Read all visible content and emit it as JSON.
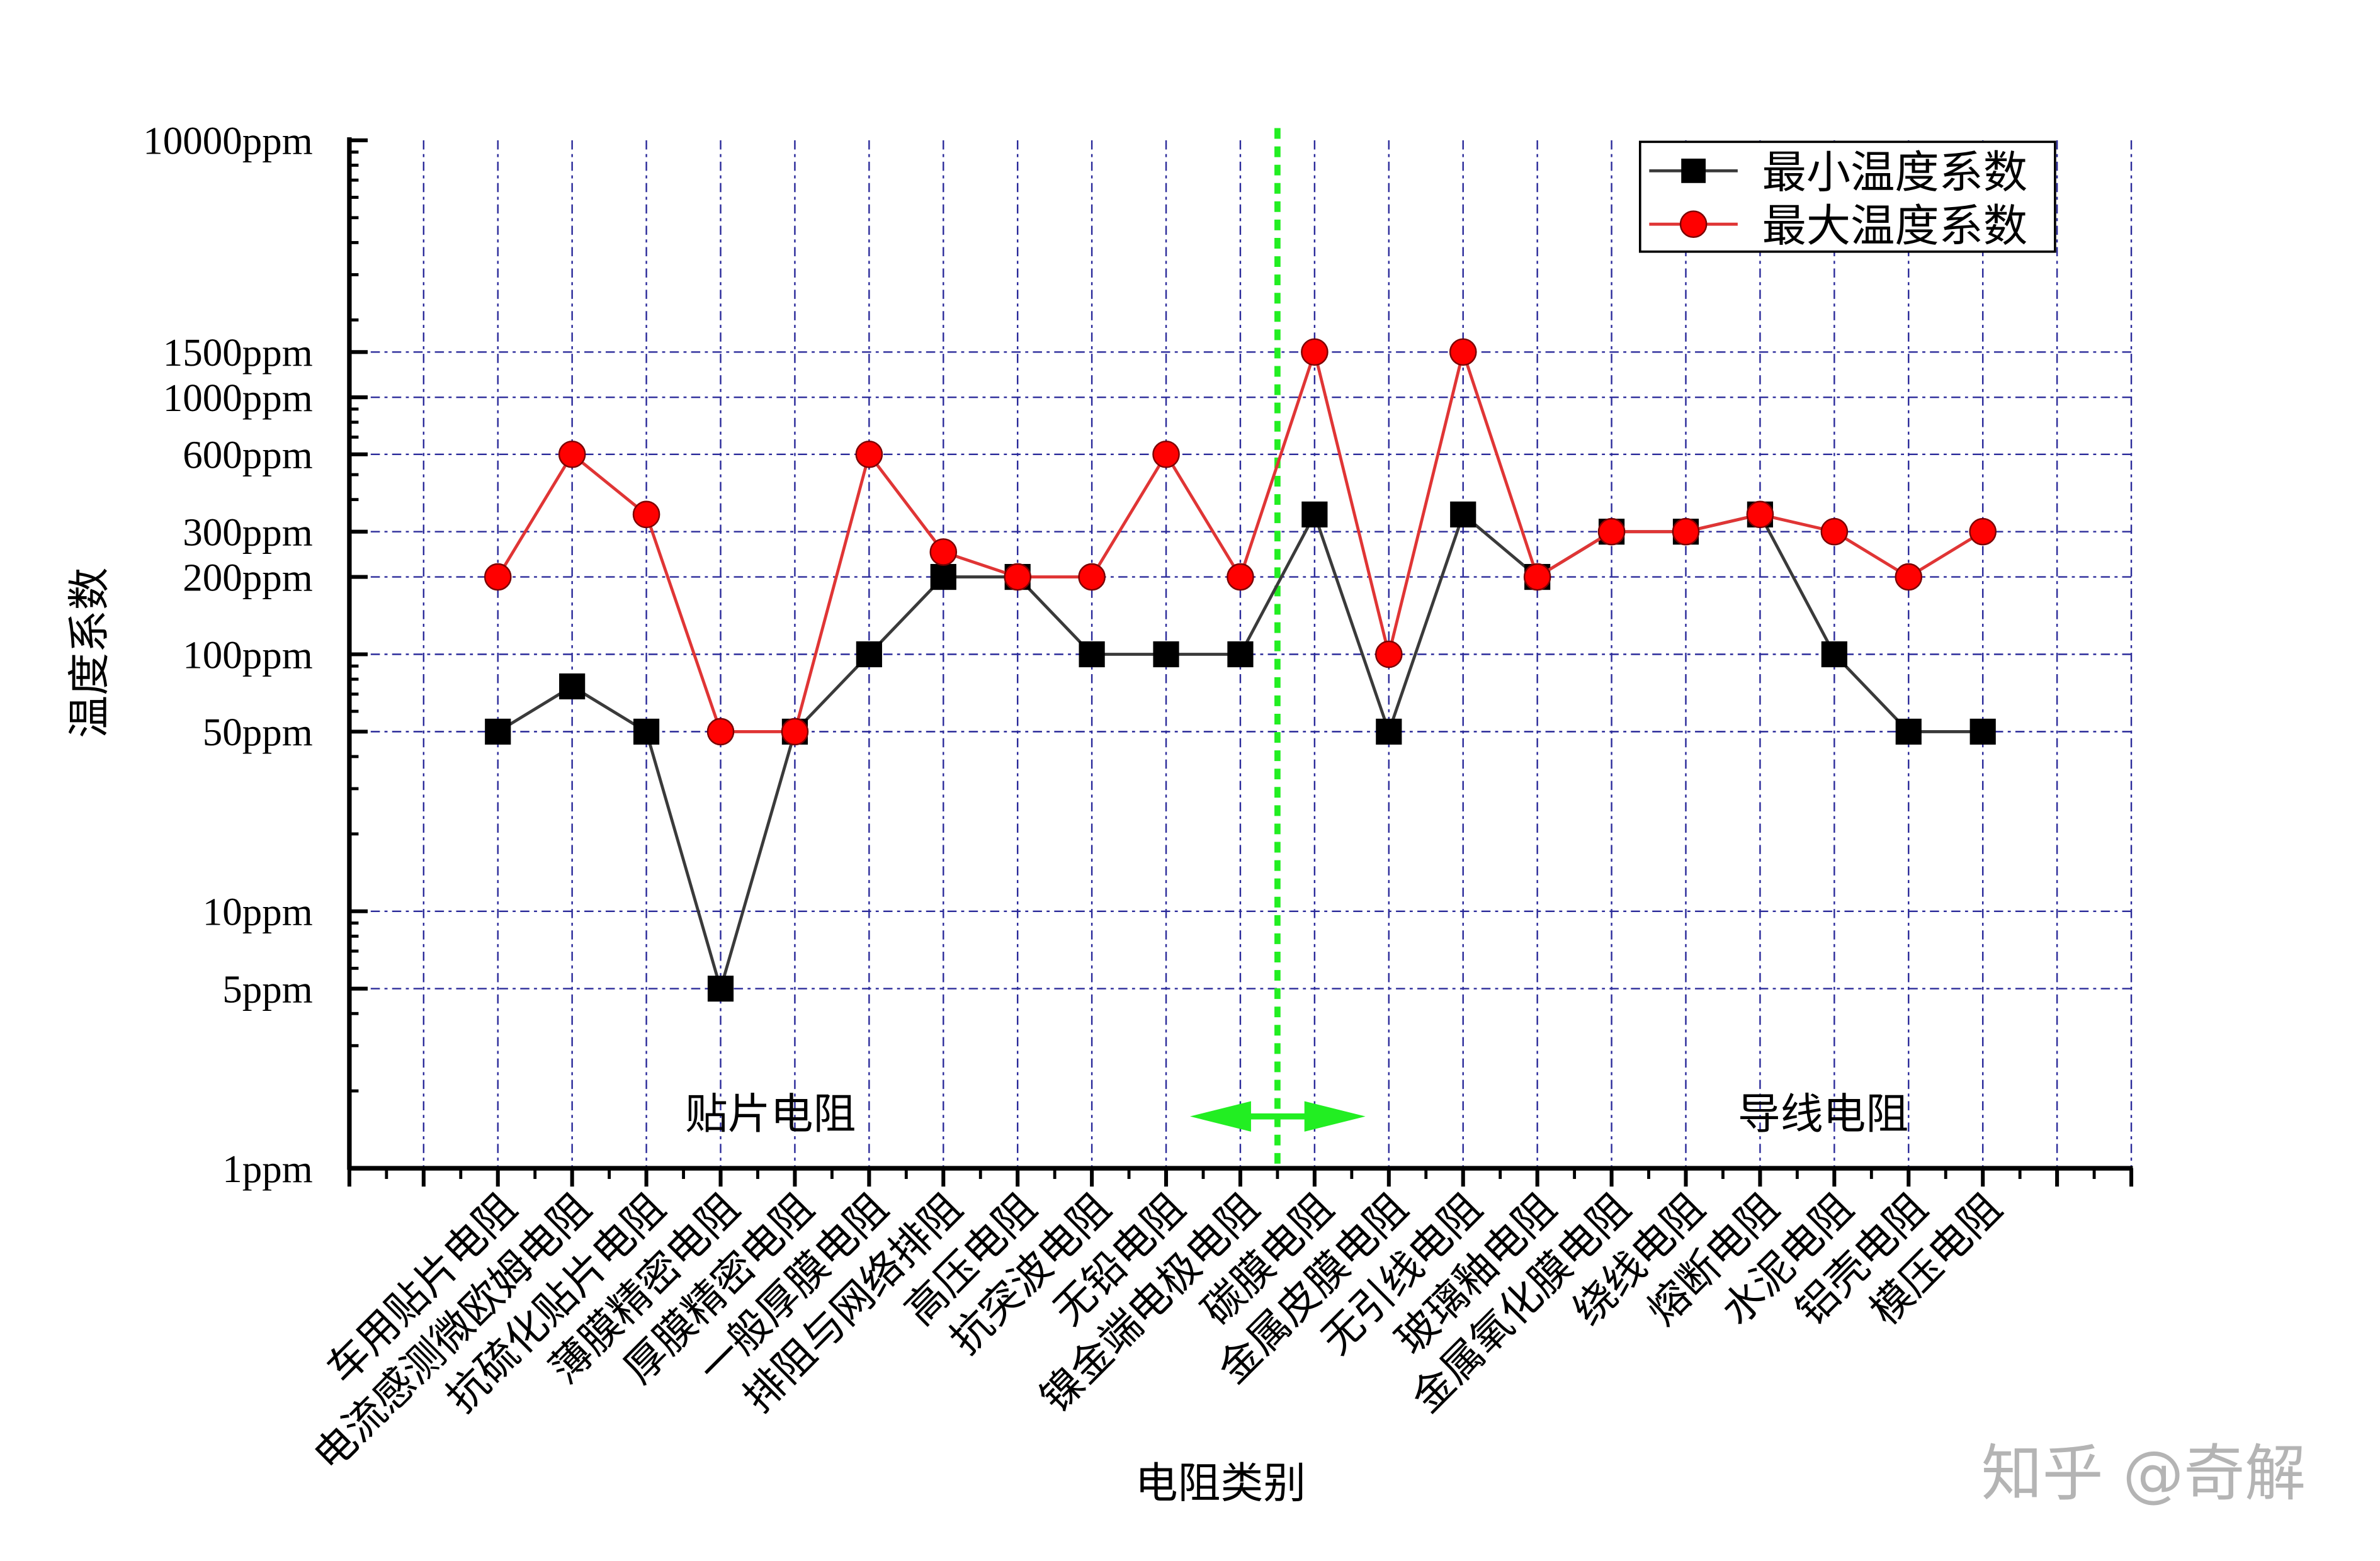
{
  "chart_data": {
    "type": "line",
    "x_label": "电阻类别",
    "y_label": "温度系数",
    "categories": [
      null,
      null,
      "车用贴片电阻",
      "电流感测微欧姆电阻",
      "抗硫化贴片电阻",
      "薄膜精密电阻",
      "厚膜精密电阻",
      "一般厚膜电阻",
      "排阻与网络排阻",
      "高压电阻",
      "抗突波电阻",
      "无铅电阻",
      "镍金端电极电阻",
      "碳膜电阻",
      "金属皮膜电阻",
      "无引线电阻",
      "玻璃釉电阻",
      "金属氧化膜电阻",
      "绕线电阻",
      "熔断电阻",
      "水泥电阻",
      "铝壳电阻",
      "模压电阻",
      null,
      null
    ],
    "series": [
      {
        "name": "最小温度系数",
        "color": "#000000",
        "line_color": "#3a3a3a",
        "marker": "square",
        "values": [
          null,
          null,
          50,
          75,
          50,
          5,
          50,
          100,
          200,
          200,
          100,
          100,
          100,
          350,
          50,
          350,
          200,
          300,
          300,
          350,
          100,
          50,
          50,
          null,
          null
        ]
      },
      {
        "name": "最大温度系数",
        "color": "#ff0000",
        "line_color": "#e03535",
        "marker": "circle",
        "values": [
          null,
          null,
          200,
          600,
          350,
          50,
          50,
          600,
          250,
          200,
          200,
          600,
          200,
          1500,
          100,
          1500,
          200,
          300,
          300,
          350,
          300,
          200,
          300,
          null,
          null
        ]
      }
    ],
    "y_scale": "log",
    "ylim": [
      1,
      10000
    ],
    "yticks": [
      {
        "value": 1,
        "label": "1ppm"
      },
      {
        "value": 5,
        "label": "5ppm"
      },
      {
        "value": 10,
        "label": "10ppm"
      },
      {
        "value": 50,
        "label": "50ppm"
      },
      {
        "value": 100,
        "label": "100ppm"
      },
      {
        "value": 200,
        "label": "200ppm"
      },
      {
        "value": 300,
        "label": "300ppm"
      },
      {
        "value": 600,
        "label": "600ppm"
      },
      {
        "value": 1000,
        "label": "1000ppm"
      },
      {
        "value": 1500,
        "label": "1500ppm"
      },
      {
        "value": 10000,
        "label": "10000ppm"
      }
    ],
    "grid": true,
    "grid_color": "#2b2b9a",
    "legend": "top-right",
    "annotations": [
      "贴片电阻",
      "导线电阻"
    ],
    "divider_color": "#22ee22",
    "watermark": "知乎 @奇解"
  }
}
